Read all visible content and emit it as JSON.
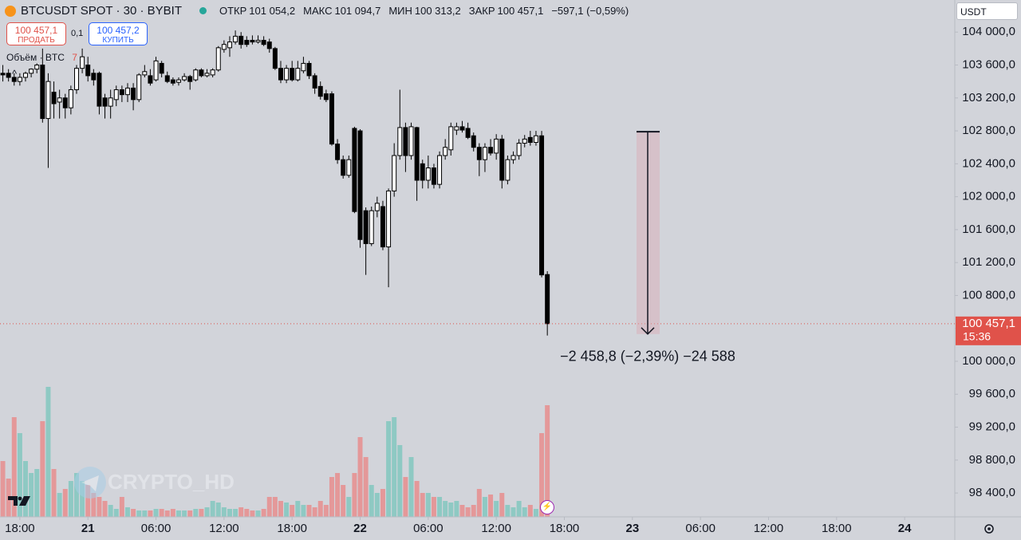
{
  "header": {
    "symbol": "BTCUSDT SPOT · 30 · BYBIT",
    "ohlc": [
      {
        "label": "ОТКР",
        "value": "101 054,2"
      },
      {
        "label": "МАКС",
        "value": "101 094,7"
      },
      {
        "label": "МИН",
        "value": "100 313,2"
      },
      {
        "label": "ЗАКР",
        "value": "100 457,1"
      }
    ],
    "change": "−597,1 (−0,59%)"
  },
  "trade": {
    "sell_price": "100 457,1",
    "sell_label": "ПРОДАТЬ",
    "spread": "0,1",
    "buy_price": "100 457,2",
    "buy_label": "КУПИТЬ"
  },
  "volume_label": "Объём · BTC",
  "volume_value": "7",
  "currency": "USDT",
  "watermark": "CRYPTO_HD",
  "chart_data": {
    "type": "candlestick",
    "open": [
      103500,
      103500,
      103450,
      103400,
      103450,
      103500,
      103550,
      103600,
      102950,
      103270,
      103150,
      103200,
      103080,
      103300,
      103560,
      103600,
      103500,
      103500,
      103200,
      103100,
      103180,
      103300,
      103240,
      103320,
      103180,
      103480,
      103470,
      103420,
      103620,
      103470,
      103420,
      103390,
      103420,
      103460,
      103420,
      103540,
      103470,
      103480,
      103540,
      103790,
      103810,
      103880,
      103950,
      103900,
      103900,
      103880,
      103900,
      103880,
      103800,
      103560,
      103420,
      103560,
      103420,
      103530,
      103620,
      103470,
      103340,
      103250,
      103250,
      102640,
      102450,
      102260,
      102830,
      102800,
      101830,
      101430,
      101830,
      101880,
      101390,
      102070,
      102500,
      102840,
      102500,
      102840,
      102400,
      102200,
      102350,
      102150,
      102500,
      102570,
      102810,
      102850,
      102830,
      102740,
      102600,
      102450,
      102600,
      102530,
      102700,
      102200,
      102450,
      102500,
      102650,
      102720,
      102660,
      102740,
      101054.2
    ],
    "high": [
      103600,
      103550,
      103500,
      103500,
      103520,
      103560,
      103620,
      103800,
      103500,
      103400,
      103300,
      103250,
      103350,
      103600,
      103800,
      103700,
      103550,
      103520,
      103250,
      103300,
      103350,
      103350,
      103380,
      103380,
      103500,
      103600,
      103550,
      103700,
      103650,
      103520,
      103450,
      103450,
      103500,
      103480,
      103560,
      103560,
      103550,
      103560,
      103830,
      103900,
      103950,
      104020,
      104000,
      103950,
      103960,
      103960,
      103950,
      103920,
      103820,
      103650,
      103600,
      103650,
      103650,
      103700,
      103650,
      103500,
      103400,
      103300,
      103280,
      102700,
      102500,
      102500,
      102850,
      102820,
      101870,
      101880,
      102000,
      101950,
      102100,
      102650,
      103300,
      102900,
      102900,
      102850,
      102450,
      102500,
      102400,
      102550,
      102700,
      102900,
      102900,
      102920,
      102900,
      102780,
      102650,
      102650,
      102700,
      102760,
      102750,
      102500,
      102550,
      102700,
      102750,
      102800,
      102800,
      102800,
      101094.7
    ],
    "low": [
      103400,
      103400,
      103350,
      103350,
      103400,
      103450,
      103500,
      102900,
      102350,
      102950,
      102950,
      102950,
      103000,
      103250,
      103500,
      103400,
      103350,
      103000,
      102950,
      102950,
      103100,
      103150,
      103150,
      103050,
      103150,
      103450,
      103350,
      103400,
      103450,
      103380,
      103350,
      103350,
      103400,
      103300,
      103400,
      103450,
      103450,
      103450,
      103520,
      103750,
      103700,
      103850,
      103800,
      103820,
      103850,
      103860,
      103830,
      103750,
      103540,
      103380,
      103380,
      103400,
      103400,
      103500,
      103430,
      103250,
      103180,
      103150,
      102620,
      102400,
      102220,
      102230,
      101800,
      101380,
      101050,
      101400,
      101750,
      101350,
      100900,
      102000,
      102450,
      102300,
      102450,
      101950,
      102100,
      102100,
      102100,
      102100,
      102450,
      102500,
      102750,
      102780,
      102700,
      102550,
      102250,
      102300,
      102500,
      102450,
      102100,
      102150,
      102400,
      102450,
      102600,
      102620,
      102620,
      101020,
      100313.2
    ],
    "close": [
      103480,
      103450,
      103400,
      103450,
      103500,
      103550,
      103600,
      102950,
      103400,
      103130,
      103200,
      103080,
      103300,
      103560,
      103700,
      103470,
      103420,
      103100,
      103100,
      103200,
      103300,
      103240,
      103320,
      103180,
      103480,
      103520,
      103380,
      103650,
      103500,
      103400,
      103380,
      103420,
      103460,
      103400,
      103540,
      103470,
      103500,
      103540,
      103810,
      103850,
      103880,
      103950,
      103850,
      103850,
      103880,
      103900,
      103850,
      103800,
      103560,
      103420,
      103560,
      103420,
      103560,
      103620,
      103470,
      103320,
      103220,
      103180,
      102640,
      102450,
      102260,
      102450,
      101820,
      101480,
      101430,
      101830,
      101920,
      101390,
      102070,
      102500,
      102840,
      102500,
      102850,
      102200,
      102200,
      102350,
      102150,
      102500,
      102600,
      102850,
      102850,
      102810,
      102720,
      102600,
      102450,
      102600,
      102530,
      102700,
      102200,
      102450,
      102500,
      102650,
      102700,
      102660,
      102740,
      101050,
      100457.1
    ],
    "volume": [
      70,
      48,
      125,
      105,
      70,
      55,
      60,
      120,
      163,
      60,
      30,
      35,
      45,
      55,
      45,
      40,
      30,
      25,
      20,
      15,
      10,
      25,
      12,
      10,
      8,
      8,
      8,
      10,
      10,
      8,
      10,
      8,
      8,
      8,
      10,
      10,
      12,
      20,
      18,
      12,
      10,
      10,
      12,
      10,
      8,
      8,
      10,
      25,
      25,
      20,
      18,
      15,
      20,
      15,
      15,
      12,
      20,
      15,
      50,
      55,
      40,
      25,
      55,
      100,
      75,
      40,
      30,
      35,
      120,
      125,
      90,
      50,
      75,
      45,
      30,
      30,
      25,
      25,
      20,
      18,
      20,
      15,
      12,
      15,
      35,
      25,
      28,
      20,
      30,
      15,
      12,
      20,
      12,
      15,
      10,
      105,
      140
    ],
    "up_color": "#ffffff",
    "down_color": "#000000",
    "up_volume_color": "#8ec9c3",
    "down_volume_color": "#e49899",
    "xlim": [
      -0.5,
      167.7
    ],
    "xticks": [
      {
        "value": 3,
        "label": "18:00"
      },
      {
        "value": 15,
        "label": "21"
      },
      {
        "value": 27,
        "label": "06:00"
      },
      {
        "value": 39,
        "label": "12:00"
      },
      {
        "value": 51,
        "label": "18:00"
      },
      {
        "value": 63,
        "label": "22"
      },
      {
        "value": 75,
        "label": "06:00"
      },
      {
        "value": 87,
        "label": "12:00"
      },
      {
        "value": 99,
        "label": "18:00"
      },
      {
        "value": 111,
        "label": "23"
      },
      {
        "value": 123,
        "label": "06:00"
      },
      {
        "value": 135,
        "label": "12:00"
      },
      {
        "value": 147,
        "label": "18:00"
      },
      {
        "value": 159,
        "label": "24"
      }
    ],
    "ylim": [
      98110,
      104390
    ],
    "yticks": [
      {
        "value": 98400,
        "label": "98 400,0"
      },
      {
        "value": 98800,
        "label": "98 800,0"
      },
      {
        "value": 99200,
        "label": "99 200,0"
      },
      {
        "value": 99600,
        "label": "99 600,0"
      },
      {
        "value": 100000,
        "label": "100 000,0"
      },
      {
        "value": 100400,
        "label": "100 400,0"
      },
      {
        "value": 100800,
        "label": "100 800,0"
      },
      {
        "value": 101200,
        "label": "101 200,0"
      },
      {
        "value": 101600,
        "label": "101 600,0"
      },
      {
        "value": 102000,
        "label": "102 000,0"
      },
      {
        "value": 102400,
        "label": "102 400,0"
      },
      {
        "value": 102800,
        "label": "102 800,0"
      },
      {
        "value": 103200,
        "label": "103 200,0"
      },
      {
        "value": 103600,
        "label": "103 600,0"
      },
      {
        "value": 104000,
        "label": "104 000,0"
      }
    ],
    "last_price": {
      "value": 100457.1,
      "label": "100 457,1",
      "countdown": "15:36",
      "color": "#e0524a"
    },
    "measure": {
      "top": 102790,
      "bottom": 100331,
      "label": "−2 458,8 (−2,39%) −24 588"
    }
  }
}
